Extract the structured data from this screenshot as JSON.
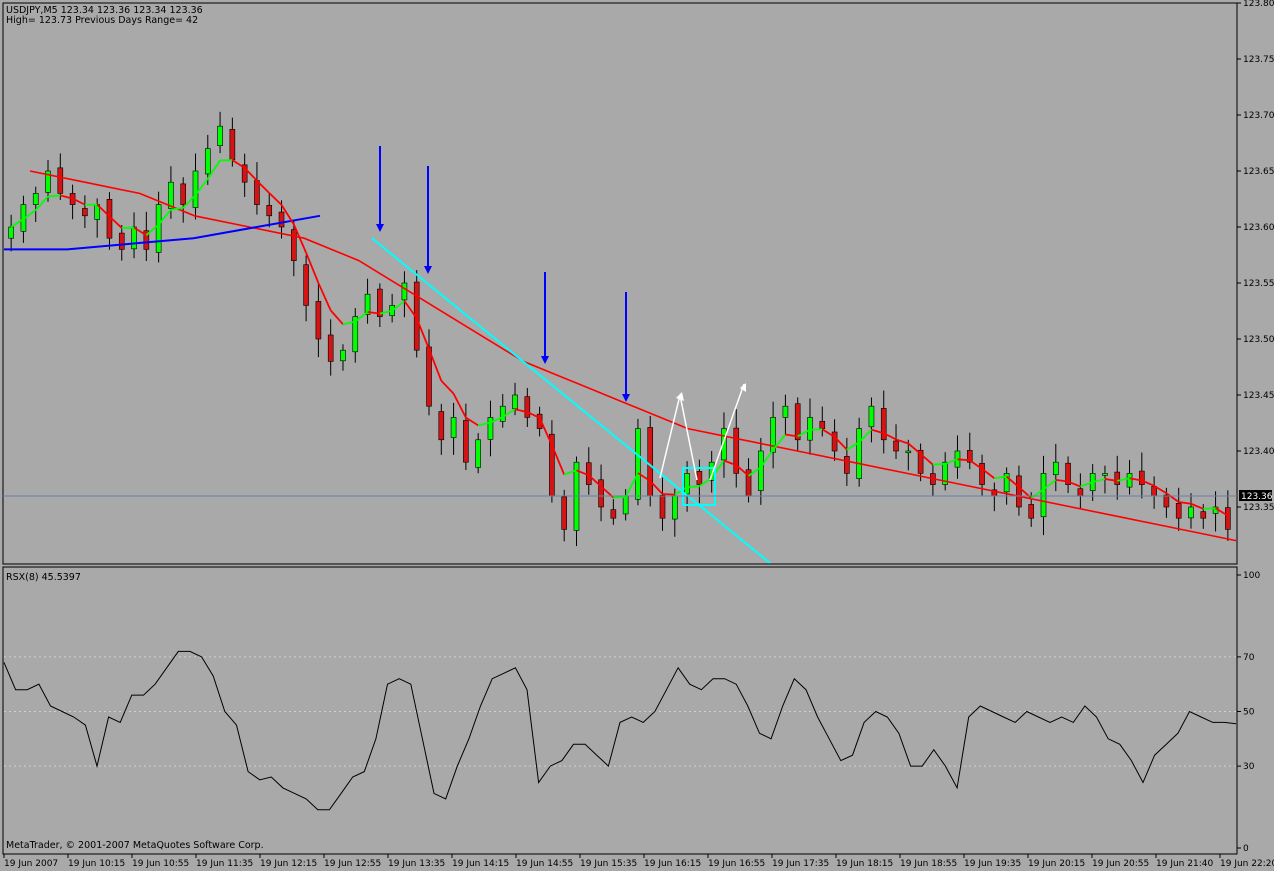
{
  "header": {
    "line1": "USDJPY,M5  123.34 123.36 123.34 123.36",
    "line2": "High= 123.73    Previous Days Range= 42"
  },
  "current_price_label": "123.36",
  "indicator_label": "RSX(8) 45.5397",
  "copyright": "MetaTrader, © 2001-2007 MetaQuotes Software Corp.",
  "colors": {
    "background": "#a9a9a9",
    "bull_candle": "#00ff00",
    "bear_candle": "#d21414",
    "ma_fast_rising": "#00ff00",
    "ma_fast_falling": "#ff0000",
    "ma_slow": "#ff0000",
    "ma_long": "#0000ff",
    "trendline": "#00ffff",
    "arrows": "#0000ff",
    "rsx_line": "#000000"
  },
  "chart_data": [
    {
      "type": "candlestick",
      "symbol": "USDJPY",
      "timeframe": "M5",
      "ylim": [
        123.2,
        123.8
      ],
      "y_ticks": [
        "123.80",
        "123.75",
        "123.70",
        "123.65",
        "123.60",
        "123.55",
        "123.50",
        "123.45",
        "123.40",
        "123.35"
      ],
      "x_ticks": [
        "19 Jun 2007",
        "19 Jun 10:15",
        "19 Jun 10:55",
        "19 Jun 11:35",
        "19 Jun 12:15",
        "19 Jun 12:55",
        "19 Jun 13:35",
        "19 Jun 14:15",
        "19 Jun 14:55",
        "19 Jun 15:35",
        "19 Jun 16:15",
        "19 Jun 16:55",
        "19 Jun 17:35",
        "19 Jun 18:15",
        "19 Jun 18:55",
        "19 Jun 19:35",
        "19 Jun 20:15",
        "19 Jun 20:55",
        "19 Jun 21:40",
        "19 Jun 22:20"
      ],
      "current_price": 123.36,
      "ohlc_close_path": [
        123.6,
        123.62,
        123.63,
        123.65,
        123.63,
        123.62,
        123.61,
        123.62,
        123.59,
        123.58,
        123.6,
        123.58,
        123.62,
        123.64,
        123.62,
        123.65,
        123.67,
        123.69,
        123.66,
        123.64,
        123.62,
        123.61,
        123.6,
        123.57,
        123.53,
        123.5,
        123.48,
        123.49,
        123.52,
        123.54,
        123.52,
        123.53,
        123.55,
        123.49,
        123.44,
        123.41,
        123.43,
        123.39,
        123.41,
        123.43,
        123.44,
        123.45,
        123.43,
        123.42,
        123.36,
        123.33,
        123.39,
        123.37,
        123.35,
        123.34,
        123.36,
        123.42,
        123.36,
        123.34,
        123.36,
        123.38,
        123.37,
        123.39,
        123.42,
        123.38,
        123.36,
        123.4,
        123.43,
        123.44,
        123.41,
        123.43,
        123.42,
        123.4,
        123.38,
        123.42,
        123.44,
        123.41,
        123.4,
        123.4,
        123.38,
        123.37,
        123.39,
        123.4,
        123.39,
        123.37,
        123.36,
        123.38,
        123.35,
        123.34,
        123.38,
        123.39,
        123.37,
        123.36,
        123.38,
        123.38,
        123.37,
        123.38,
        123.37,
        123.36,
        123.35,
        123.34,
        123.35,
        123.34,
        123.35,
        123.33
      ],
      "ma_slow_path": [
        123.65,
        123.64,
        123.63,
        123.61,
        123.6,
        123.59,
        123.57,
        123.54,
        123.51,
        123.48,
        123.46,
        123.44,
        123.42,
        123.41,
        123.4,
        123.39,
        123.38,
        123.37,
        123.36,
        123.35,
        123.34,
        123.33,
        123.32
      ],
      "ma_long_path": [
        123.58,
        123.58,
        123.585,
        123.59,
        123.6,
        123.61
      ],
      "trendline": {
        "start": 123.59,
        "end": 123.3
      },
      "arrows": 4
    },
    {
      "type": "line",
      "name": "RSX(8)",
      "last_value": 45.5397,
      "ylim": [
        0,
        100
      ],
      "y_ticks": [
        "100",
        "70",
        "50",
        "30",
        "0"
      ],
      "levels": [
        70,
        50,
        30
      ],
      "values": [
        68,
        58,
        58,
        60,
        52,
        50,
        48,
        45,
        30,
        48,
        46,
        56,
        56,
        60,
        66,
        72,
        72,
        70,
        63,
        50,
        45,
        28,
        25,
        26,
        22,
        20,
        18,
        14,
        14,
        20,
        26,
        28,
        40,
        60,
        62,
        60,
        40,
        20,
        18,
        30,
        40,
        52,
        62,
        64,
        66,
        58,
        24,
        30,
        32,
        38,
        38,
        34,
        30,
        46,
        48,
        46,
        50,
        58,
        66,
        60,
        58,
        62,
        62,
        60,
        52,
        42,
        40,
        52,
        62,
        58,
        48,
        40,
        32,
        34,
        46,
        50,
        48,
        42,
        30,
        30,
        36,
        30,
        22,
        48,
        52,
        50,
        48,
        46,
        50,
        48,
        46,
        48,
        46,
        52,
        48,
        40,
        38,
        32,
        24,
        34,
        38,
        42,
        50,
        48,
        46,
        46,
        45.5
      ]
    }
  ]
}
